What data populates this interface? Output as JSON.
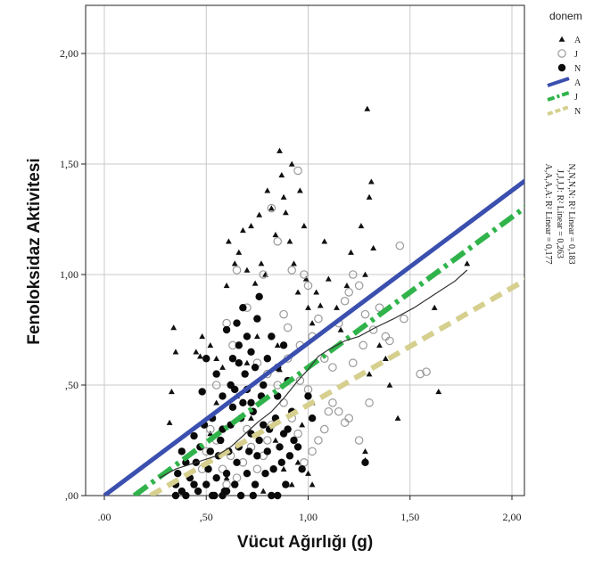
{
  "chart_data": {
    "type": "scatter",
    "xlabel": "Vücut Ağırlığı (g)",
    "ylabel": "Fenoloksidaz Aktivitesi",
    "xlim": [
      -0.1,
      2.1
    ],
    "ylim": [
      0,
      2.2
    ],
    "x_ticks": [
      ".00",
      ",50",
      "1,00",
      "1,50",
      "2,00"
    ],
    "y_ticks": [
      ",00",
      ",50",
      "1,00",
      "1,50",
      "2,00"
    ],
    "grid": true,
    "legend": {
      "title": "donem",
      "position": "right",
      "entries": [
        {
          "label": "A",
          "kind": "marker",
          "marker": "triangle"
        },
        {
          "label": "J",
          "kind": "marker",
          "marker": "open-circle"
        },
        {
          "label": "N",
          "kind": "marker",
          "marker": "filled-circle"
        },
        {
          "label": "A",
          "kind": "line",
          "color": "#3a4fae"
        },
        {
          "label": "J",
          "kind": "line",
          "color": "#2fb34a"
        },
        {
          "label": "N",
          "kind": "line",
          "color": "#d6cf8e"
        }
      ]
    },
    "fit_lines": [
      {
        "series": "A",
        "slope": 0.69,
        "intercept": 0.0,
        "color": "#3a4fae",
        "style": "solid",
        "label": "A,A,A,A: R² Linear = 0,177"
      },
      {
        "series": "J",
        "slope": 0.68,
        "intercept": -0.1,
        "color": "#2fb34a",
        "style": "dashdot",
        "label": "J,J,J,J: R² Linear = 0,263"
      },
      {
        "series": "N",
        "slope": 0.53,
        "intercept": -0.12,
        "color": "#d6cf8e",
        "style": "dashed",
        "label": "N,N,N,N: R² Linear = 0,183"
      }
    ],
    "loess": [
      [
        0.27,
        0.08
      ],
      [
        0.35,
        0.12
      ],
      [
        0.45,
        0.15
      ],
      [
        0.55,
        0.18
      ],
      [
        0.62,
        0.22
      ],
      [
        0.68,
        0.27
      ],
      [
        0.75,
        0.33
      ],
      [
        0.82,
        0.38
      ],
      [
        0.88,
        0.44
      ],
      [
        0.95,
        0.52
      ],
      [
        1.0,
        0.57
      ],
      [
        1.05,
        0.63
      ],
      [
        1.1,
        0.66
      ],
      [
        1.18,
        0.7
      ],
      [
        1.25,
        0.72
      ],
      [
        1.33,
        0.76
      ],
      [
        1.42,
        0.8
      ],
      [
        1.52,
        0.85
      ],
      [
        1.62,
        0.91
      ],
      [
        1.72,
        0.97
      ],
      [
        1.78,
        1.02
      ]
    ],
    "series": [
      {
        "name": "A",
        "marker": "triangle",
        "points": [
          [
            0.34,
            0.76
          ],
          [
            0.35,
            0.65
          ],
          [
            0.33,
            0.47
          ],
          [
            0.32,
            0.33
          ],
          [
            0.45,
            0.65
          ],
          [
            0.47,
            0.63
          ],
          [
            0.48,
            0.72
          ],
          [
            0.52,
            0.68
          ],
          [
            0.55,
            0.62
          ],
          [
            0.58,
            0.58
          ],
          [
            0.6,
            0.95
          ],
          [
            0.61,
            1.15
          ],
          [
            0.64,
            1.05
          ],
          [
            0.66,
            1.1
          ],
          [
            0.68,
            1.2
          ],
          [
            0.7,
            1.02
          ],
          [
            0.72,
            1.22
          ],
          [
            0.74,
            0.96
          ],
          [
            0.76,
            1.27
          ],
          [
            0.77,
            1.05
          ],
          [
            0.79,
            1.0
          ],
          [
            0.8,
            1.38
          ],
          [
            0.82,
            1.3
          ],
          [
            0.84,
            1.18
          ],
          [
            0.86,
            1.56
          ],
          [
            0.87,
            1.45
          ],
          [
            0.88,
            1.35
          ],
          [
            0.89,
            1.28
          ],
          [
            0.91,
            1.15
          ],
          [
            0.92,
            1.5
          ],
          [
            0.93,
            1.05
          ],
          [
            0.95,
            0.92
          ],
          [
            0.96,
            1.38
          ],
          [
            0.98,
            1.22
          ],
          [
            0.99,
            0.98
          ],
          [
            1.0,
            0.85
          ],
          [
            1.02,
            0.78
          ],
          [
            1.04,
            0.92
          ],
          [
            1.06,
            0.86
          ],
          [
            1.08,
            1.15
          ],
          [
            1.1,
            0.98
          ],
          [
            1.14,
            0.85
          ],
          [
            1.16,
            0.75
          ],
          [
            1.19,
            0.95
          ],
          [
            1.21,
            1.1
          ],
          [
            1.26,
            1.22
          ],
          [
            1.28,
            1.0
          ],
          [
            1.29,
            1.75
          ],
          [
            1.3,
            1.35
          ],
          [
            1.31,
            1.42
          ],
          [
            1.32,
            1.12
          ],
          [
            1.35,
            0.68
          ],
          [
            1.38,
            0.62
          ],
          [
            1.4,
            0.5
          ],
          [
            1.44,
            0.35
          ],
          [
            1.62,
            0.85
          ],
          [
            1.64,
            0.47
          ],
          [
            1.78,
            1.05
          ],
          [
            1.28,
            0.2
          ],
          [
            1.28,
            0.16
          ],
          [
            0.97,
            0.32
          ],
          [
            0.92,
            0.05
          ],
          [
            0.88,
            0.12
          ],
          [
            0.72,
            0.35
          ],
          [
            0.55,
            0.42
          ],
          [
            0.52,
            0.28
          ],
          [
            0.6,
            0.08
          ],
          [
            0.65,
            0.45
          ],
          [
            0.78,
            0.02
          ],
          [
            0.84,
            0.25
          ],
          [
            1.02,
            0.05
          ],
          [
            0.95,
            0.15
          ],
          [
            0.85,
            0.68
          ],
          [
            0.86,
            0.57
          ],
          [
            0.75,
            0.72
          ],
          [
            0.7,
            0.6
          ],
          [
            1.3,
            0.55
          ],
          [
            1.02,
            0.42
          ],
          [
            1.0,
            0.1
          ]
        ]
      },
      {
        "name": "J",
        "marker": "open-circle",
        "points": [
          [
            0.95,
            1.47
          ],
          [
            0.82,
            1.3
          ],
          [
            0.85,
            1.15
          ],
          [
            0.92,
            1.02
          ],
          [
            0.98,
            1.0
          ],
          [
            1.0,
            0.95
          ],
          [
            1.05,
            0.8
          ],
          [
            0.88,
            0.82
          ],
          [
            0.9,
            0.76
          ],
          [
            0.96,
            0.68
          ],
          [
            1.02,
            0.72
          ],
          [
            1.08,
            0.62
          ],
          [
            1.12,
            0.58
          ],
          [
            1.15,
            0.78
          ],
          [
            1.18,
            0.88
          ],
          [
            1.2,
            0.92
          ],
          [
            1.22,
            1.0
          ],
          [
            1.25,
            0.95
          ],
          [
            1.28,
            0.82
          ],
          [
            1.32,
            0.75
          ],
          [
            1.35,
            0.85
          ],
          [
            1.38,
            0.72
          ],
          [
            1.4,
            0.7
          ],
          [
            1.45,
            1.13
          ],
          [
            1.47,
            0.8
          ],
          [
            1.55,
            0.55
          ],
          [
            1.58,
            0.56
          ],
          [
            1.1,
            0.38
          ],
          [
            1.12,
            0.42
          ],
          [
            1.08,
            0.3
          ],
          [
            1.05,
            0.25
          ],
          [
            1.02,
            0.2
          ],
          [
            0.98,
            0.15
          ],
          [
            0.95,
            0.28
          ],
          [
            0.92,
            0.35
          ],
          [
            0.88,
            0.42
          ],
          [
            0.85,
            0.5
          ],
          [
            0.82,
            0.32
          ],
          [
            0.8,
            0.25
          ],
          [
            0.78,
            0.18
          ],
          [
            0.75,
            0.12
          ],
          [
            0.72,
            0.22
          ],
          [
            0.7,
            0.3
          ],
          [
            0.68,
            0.15
          ],
          [
            0.65,
            0.08
          ],
          [
            0.62,
            0.18
          ],
          [
            0.6,
            0.05
          ],
          [
            0.58,
            0.12
          ],
          [
            0.55,
            0.25
          ],
          [
            0.52,
            0.3
          ],
          [
            0.5,
            0.2
          ],
          [
            0.48,
            0.12
          ],
          [
            0.78,
            1.0
          ],
          [
            0.65,
            1.02
          ],
          [
            0.7,
            0.85
          ],
          [
            0.6,
            0.78
          ],
          [
            0.63,
            0.68
          ],
          [
            0.75,
            0.6
          ],
          [
            0.8,
            0.55
          ],
          [
            0.9,
            0.62
          ],
          [
            1.15,
            0.38
          ],
          [
            1.18,
            0.33
          ],
          [
            1.2,
            0.35
          ],
          [
            1.25,
            0.25
          ],
          [
            1.3,
            0.42
          ],
          [
            1.22,
            0.6
          ],
          [
            1.27,
            0.68
          ],
          [
            1.0,
            0.48
          ],
          [
            0.96,
            0.52
          ],
          [
            0.55,
            0.5
          ]
        ]
      },
      {
        "name": "N",
        "marker": "filled-circle",
        "points": [
          [
            0.48,
            0.47
          ],
          [
            0.44,
            0.27
          ],
          [
            0.38,
            0.2
          ],
          [
            0.36,
            0.1
          ],
          [
            0.35,
            0.05
          ],
          [
            0.38,
            0.02
          ],
          [
            0.4,
            0.0
          ],
          [
            0.42,
            0.08
          ],
          [
            0.45,
            0.15
          ],
          [
            0.47,
            0.22
          ],
          [
            0.49,
            0.32
          ],
          [
            0.5,
            0.05
          ],
          [
            0.51,
            0.12
          ],
          [
            0.52,
            0.2
          ],
          [
            0.53,
            0.35
          ],
          [
            0.54,
            0.0
          ],
          [
            0.55,
            0.08
          ],
          [
            0.56,
            0.18
          ],
          [
            0.57,
            0.25
          ],
          [
            0.58,
            0.3
          ],
          [
            0.59,
            0.02
          ],
          [
            0.6,
            0.1
          ],
          [
            0.61,
            0.2
          ],
          [
            0.62,
            0.32
          ],
          [
            0.63,
            0.4
          ],
          [
            0.64,
            0.05
          ],
          [
            0.65,
            0.15
          ],
          [
            0.66,
            0.22
          ],
          [
            0.67,
            0.35
          ],
          [
            0.68,
            0.42
          ],
          [
            0.69,
            0.55
          ],
          [
            0.7,
            0.1
          ],
          [
            0.71,
            0.2
          ],
          [
            0.72,
            0.28
          ],
          [
            0.73,
            0.38
          ],
          [
            0.74,
            0.05
          ],
          [
            0.75,
            0.18
          ],
          [
            0.76,
            0.25
          ],
          [
            0.77,
            0.45
          ],
          [
            0.78,
            0.32
          ],
          [
            0.79,
            0.1
          ],
          [
            0.8,
            0.2
          ],
          [
            0.81,
            0.3
          ],
          [
            0.82,
            0.0
          ],
          [
            0.83,
            0.12
          ],
          [
            0.84,
            0.35
          ],
          [
            0.85,
            0.45
          ],
          [
            0.86,
            0.22
          ],
          [
            0.87,
            0.15
          ],
          [
            0.88,
            0.28
          ],
          [
            0.89,
            0.05
          ],
          [
            0.9,
            0.3
          ],
          [
            0.91,
            0.18
          ],
          [
            0.92,
            0.38
          ],
          [
            0.93,
            0.25
          ],
          [
            0.95,
            0.22
          ],
          [
            0.97,
            0.12
          ],
          [
            0.6,
            0.75
          ],
          [
            0.63,
            0.62
          ],
          [
            0.65,
            0.78
          ],
          [
            0.66,
            0.68
          ],
          [
            0.68,
            0.85
          ],
          [
            0.7,
            0.72
          ],
          [
            0.72,
            0.65
          ],
          [
            0.74,
            0.58
          ],
          [
            0.75,
            0.8
          ],
          [
            0.76,
            0.9
          ],
          [
            0.58,
            0.45
          ],
          [
            0.55,
            0.55
          ],
          [
            0.62,
            0.5
          ],
          [
            0.64,
            0.48
          ],
          [
            0.66,
            0.6
          ],
          [
            0.8,
            0.62
          ],
          [
            0.82,
            0.72
          ],
          [
            0.85,
            0.58
          ],
          [
            0.88,
            0.68
          ],
          [
            0.9,
            0.52
          ],
          [
            0.78,
            0.5
          ],
          [
            0.72,
            0.42
          ],
          [
            0.7,
            0.48
          ],
          [
            1.02,
            0.35
          ],
          [
            1.0,
            0.45
          ],
          [
            1.28,
            0.15
          ],
          [
            0.5,
            0.62
          ],
          [
            0.6,
            0.02
          ],
          [
            0.53,
            0.0
          ],
          [
            0.46,
            0.02
          ],
          [
            0.58,
            0.0
          ],
          [
            0.67,
            0.0
          ],
          [
            0.73,
            0.0
          ],
          [
            0.35,
            0.0
          ],
          [
            0.85,
            0.0
          ],
          [
            0.4,
            0.15
          ],
          [
            0.44,
            0.05
          ]
        ]
      }
    ]
  }
}
